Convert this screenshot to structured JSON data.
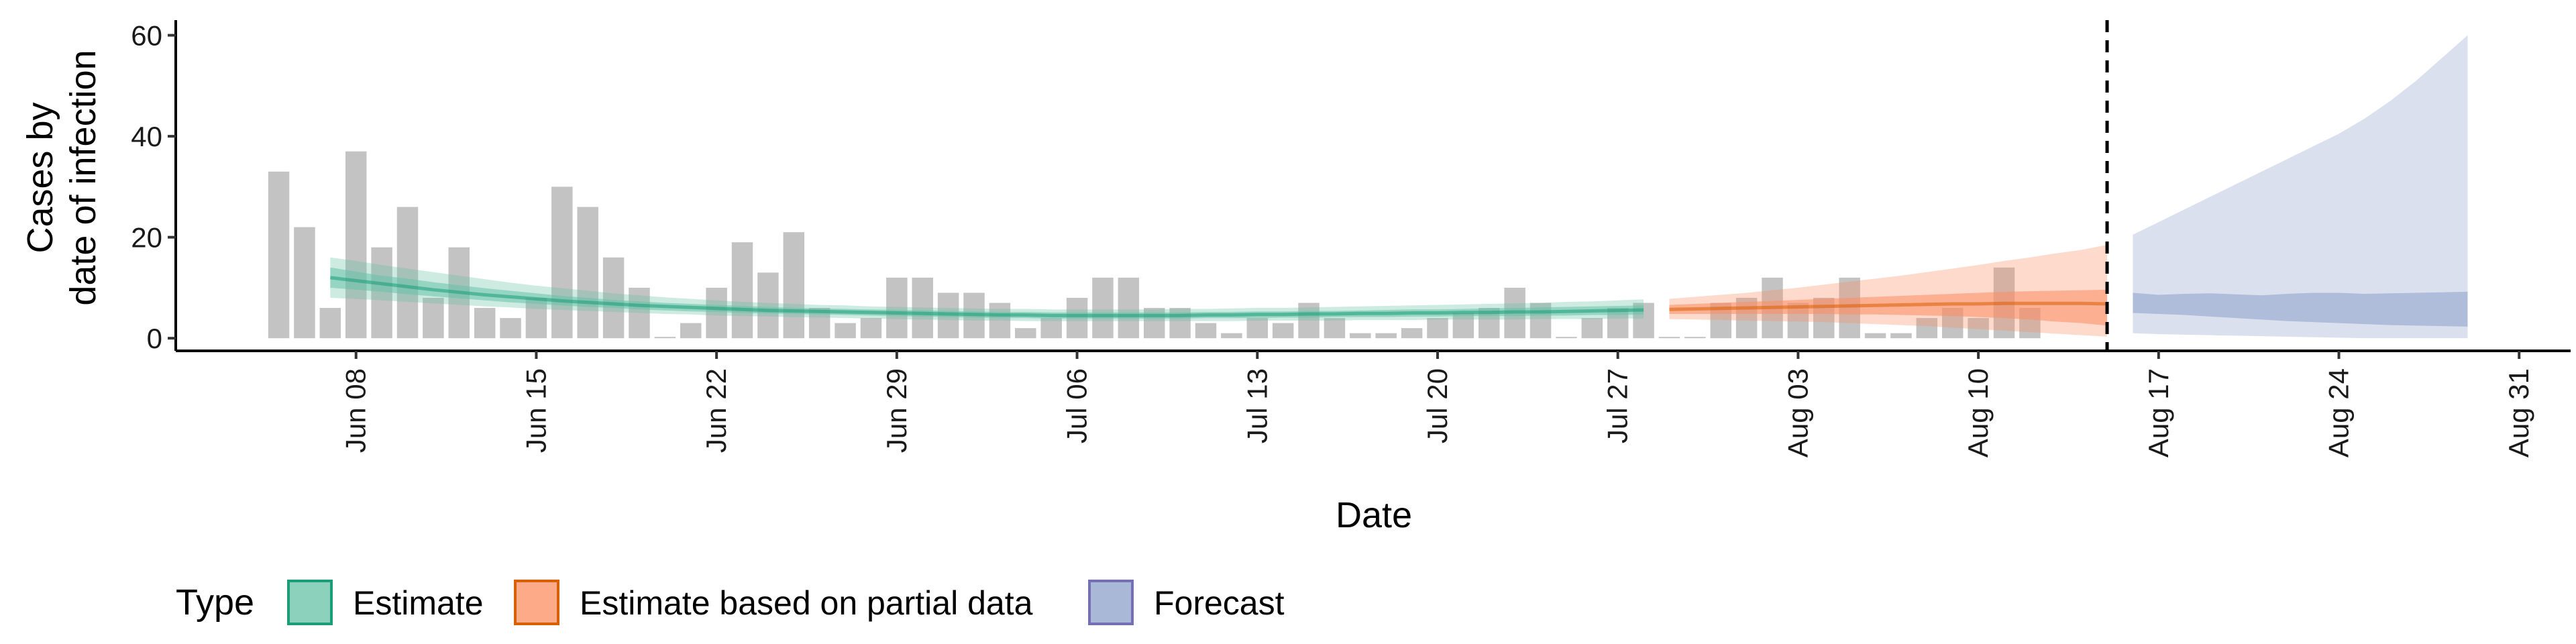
{
  "chart_data": {
    "type": "bar",
    "xlabel": "Date",
    "ylabel_lines": [
      "Cases by",
      "date of infection"
    ],
    "ylim": [
      -2.5,
      63
    ],
    "xlim": [
      "2020-06-01",
      "2020-09-02"
    ],
    "y_ticks": [
      0,
      20,
      40,
      60
    ],
    "x_ticks": [
      {
        "date": "2020-06-08",
        "label": "Jun 08"
      },
      {
        "date": "2020-06-15",
        "label": "Jun 15"
      },
      {
        "date": "2020-06-22",
        "label": "Jun 22"
      },
      {
        "date": "2020-06-29",
        "label": "Jun 29"
      },
      {
        "date": "2020-07-06",
        "label": "Jul 06"
      },
      {
        "date": "2020-07-13",
        "label": "Jul 13"
      },
      {
        "date": "2020-07-20",
        "label": "Jul 20"
      },
      {
        "date": "2020-07-27",
        "label": "Jul 27"
      },
      {
        "date": "2020-08-03",
        "label": "Aug 03"
      },
      {
        "date": "2020-08-10",
        "label": "Aug 10"
      },
      {
        "date": "2020-08-17",
        "label": "Aug 17"
      },
      {
        "date": "2020-08-24",
        "label": "Aug 24"
      },
      {
        "date": "2020-08-31",
        "label": "Aug 31"
      }
    ],
    "grid": false,
    "forecast_start_marker": "2020-08-15",
    "reported_cases": {
      "start_date": "2020-06-05",
      "values": [
        33,
        22,
        6,
        37,
        18,
        26,
        8,
        18,
        6,
        4,
        8,
        30,
        26,
        16,
        10,
        0,
        3,
        10,
        19,
        13,
        21,
        6,
        3,
        4,
        12,
        12,
        9,
        9,
        7,
        2,
        4,
        8,
        12,
        12,
        6,
        6,
        3,
        1,
        4,
        3,
        7,
        4,
        1,
        1,
        2,
        4,
        5,
        6,
        10,
        7,
        0,
        4,
        6,
        7,
        0,
        0,
        7,
        8,
        12,
        7,
        8,
        12,
        1,
        1,
        4,
        6,
        4,
        14,
        6
      ]
    },
    "series": [
      {
        "name": "Estimate",
        "color": "#1b9e77",
        "fill": "#66c2a5",
        "start_date": "2020-06-07",
        "end_date": "2020-07-28",
        "median": [
          12,
          11.4,
          10.8,
          10.2,
          9.6,
          9.1,
          8.6,
          8.2,
          7.8,
          7.4,
          7.1,
          6.8,
          6.5,
          6.3,
          6.1,
          5.9,
          5.7,
          5.5,
          5.4,
          5.3,
          5.2,
          5.1,
          5.0,
          4.9,
          4.8,
          4.7,
          4.6,
          4.6,
          4.5,
          4.5,
          4.5,
          4.5,
          4.5,
          4.5,
          4.6,
          4.6,
          4.7,
          4.7,
          4.8,
          4.8,
          4.9,
          4.9,
          5.0,
          5.0,
          5.1,
          5.1,
          5.2,
          5.2,
          5.3,
          5.4,
          5.5,
          5.6
        ],
        "inner_lower": [
          10,
          9.6,
          9.2,
          8.7,
          8.3,
          7.9,
          7.5,
          7.1,
          6.8,
          6.5,
          6.2,
          6.0,
          5.7,
          5.5,
          5.3,
          5.2,
          5.0,
          4.9,
          4.8,
          4.7,
          4.6,
          4.5,
          4.4,
          4.3,
          4.2,
          4.1,
          4.0,
          4.0,
          3.9,
          3.9,
          3.9,
          3.9,
          3.9,
          3.9,
          4.0,
          4.0,
          4.0,
          4.1,
          4.1,
          4.2,
          4.2,
          4.2,
          4.3,
          4.3,
          4.4,
          4.4,
          4.4,
          4.5,
          4.5,
          4.6,
          4.6,
          4.7
        ],
        "inner_upper": [
          14,
          13.2,
          12.4,
          11.8,
          11.1,
          10.5,
          9.9,
          9.4,
          8.9,
          8.4,
          8.0,
          7.6,
          7.3,
          7.0,
          6.8,
          6.6,
          6.4,
          6.2,
          6.0,
          5.9,
          5.8,
          5.7,
          5.6,
          5.5,
          5.4,
          5.3,
          5.2,
          5.2,
          5.1,
          5.1,
          5.1,
          5.1,
          5.1,
          5.1,
          5.2,
          5.2,
          5.3,
          5.3,
          5.4,
          5.4,
          5.5,
          5.6,
          5.7,
          5.7,
          5.8,
          5.9,
          6.0,
          6.1,
          6.2,
          6.3,
          6.4,
          6.5
        ],
        "outer_lower": [
          8,
          7.8,
          7.5,
          7.2,
          6.9,
          6.6,
          6.3,
          6.1,
          5.8,
          5.6,
          5.4,
          5.2,
          5.0,
          4.8,
          4.7,
          4.5,
          4.4,
          4.3,
          4.2,
          4.1,
          4.0,
          3.9,
          3.8,
          3.7,
          3.6,
          3.5,
          3.5,
          3.4,
          3.4,
          3.4,
          3.4,
          3.4,
          3.4,
          3.4,
          3.4,
          3.4,
          3.5,
          3.5,
          3.5,
          3.5,
          3.6,
          3.6,
          3.6,
          3.7,
          3.7,
          3.7,
          3.7,
          3.8,
          3.8,
          3.8,
          3.9,
          3.9
        ],
        "outer_upper": [
          16,
          15.3,
          14.5,
          13.8,
          13.1,
          12.4,
          11.7,
          11.0,
          10.4,
          9.9,
          9.4,
          8.9,
          8.5,
          8.1,
          7.8,
          7.5,
          7.2,
          7.0,
          6.8,
          6.6,
          6.5,
          6.3,
          6.2,
          6.1,
          6.0,
          5.9,
          5.8,
          5.8,
          5.7,
          5.7,
          5.7,
          5.7,
          5.7,
          5.8,
          5.8,
          5.9,
          6.0,
          6.0,
          6.1,
          6.2,
          6.3,
          6.4,
          6.5,
          6.6,
          6.7,
          6.8,
          6.9,
          7.0,
          7.2,
          7.3,
          7.5,
          7.7
        ]
      },
      {
        "name": "Estimate based on partial data",
        "color": "#d95f02",
        "fill": "#fc8d62",
        "start_date": "2020-07-29",
        "end_date": "2020-08-15",
        "median": [
          5.7,
          5.8,
          5.9,
          6.0,
          6.1,
          6.2,
          6.3,
          6.4,
          6.5,
          6.6,
          6.7,
          6.8,
          6.8,
          6.9,
          6.9,
          6.9,
          6.9,
          6.8
        ],
        "inner_lower": [
          4.8,
          4.8,
          4.8,
          4.8,
          4.8,
          4.8,
          4.8,
          4.7,
          4.7,
          4.6,
          4.5,
          4.4,
          4.2,
          4.0,
          3.7,
          3.3,
          3.0,
          2.5
        ],
        "inner_upper": [
          6.6,
          6.8,
          7.0,
          7.2,
          7.4,
          7.6,
          7.8,
          8.0,
          8.2,
          8.4,
          8.6,
          8.8,
          9.0,
          9.2,
          9.3,
          9.4,
          9.5,
          9.6
        ],
        "outer_lower": [
          3.8,
          3.7,
          3.6,
          3.5,
          3.4,
          3.3,
          3.2,
          3.0,
          2.8,
          2.6,
          2.4,
          2.1,
          1.8,
          1.5,
          1.2,
          0.9,
          0.6,
          0.3
        ],
        "outer_upper": [
          7.8,
          8.2,
          8.6,
          9.0,
          9.5,
          10.0,
          10.6,
          11.2,
          11.8,
          12.4,
          13.1,
          13.8,
          14.5,
          15.3,
          16.0,
          16.8,
          17.5,
          18.5
        ]
      },
      {
        "name": "Forecast",
        "color": "#7570b3",
        "fill": "#8da0cb",
        "start_date": "2020-08-16",
        "end_date": "2020-08-29",
        "median": [
          7,
          6.9,
          6.8,
          6.7,
          6.6,
          6.5,
          6.4,
          6.3,
          6.3,
          6.2,
          6.2,
          6.2,
          6.2,
          6.2
        ],
        "inner_lower": [
          5.0,
          4.8,
          4.6,
          4.3,
          4.0,
          3.7,
          3.4,
          3.2,
          3.0,
          2.8,
          2.6,
          2.5,
          2.4,
          2.3
        ],
        "inner_upper": [
          9.0,
          8.6,
          8.8,
          8.9,
          8.7,
          8.5,
          8.8,
          9.0,
          9.0,
          8.8,
          8.9,
          9.0,
          9.1,
          9.2
        ],
        "outer_lower": [
          1.0,
          0.8,
          0.7,
          0.6,
          0.5,
          0.4,
          0.3,
          0.2,
          0.1,
          0,
          0,
          0,
          0,
          0
        ],
        "outer_upper": [
          20.5,
          23,
          25.5,
          28,
          30.5,
          33,
          35.5,
          38,
          40.5,
          43.5,
          47,
          51,
          55.5,
          60
        ]
      }
    ],
    "legend": {
      "title": "Type",
      "position": "bottom",
      "entries": [
        "Estimate",
        "Estimate based on partial data",
        "Forecast"
      ]
    }
  }
}
